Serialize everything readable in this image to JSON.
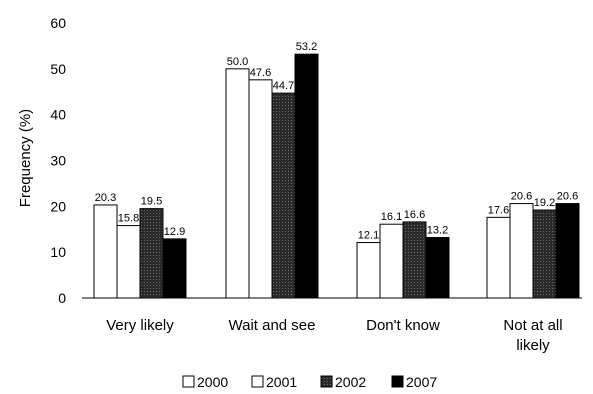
{
  "chart_data": {
    "type": "bar",
    "title": "",
    "xlabel": "",
    "ylabel": "Frequency (%)",
    "ylim": [
      0,
      60
    ],
    "yticks": [
      0,
      10,
      20,
      30,
      40,
      50,
      60
    ],
    "grid": false,
    "legend_position": "bottom",
    "categories": [
      "Very likely",
      "Wait and see",
      "Don't know",
      "Not at all likely"
    ],
    "category_lines": [
      [
        "Very likely"
      ],
      [
        "Wait and see"
      ],
      [
        "Don't know"
      ],
      [
        "Not at all",
        "likely"
      ]
    ],
    "series": [
      {
        "name": "2000",
        "values": [
          20.3,
          50.0,
          12.1,
          17.6
        ],
        "labels": [
          "20.3",
          "50.0",
          "12.1",
          "17.6"
        ],
        "color": "#ffffff"
      },
      {
        "name": "2001",
        "values": [
          15.8,
          47.6,
          16.1,
          20.6
        ],
        "labels": [
          "15.8",
          "47.6",
          "16.1",
          "20.6"
        ],
        "color": "#ffffff"
      },
      {
        "name": "2002",
        "values": [
          19.5,
          44.7,
          16.6,
          19.2
        ],
        "labels": [
          "19.5",
          "44.7",
          "16.6",
          "19.2"
        ],
        "color": "#2a2a2a"
      },
      {
        "name": "2007",
        "values": [
          12.9,
          53.2,
          13.2,
          20.6
        ],
        "labels": [
          "12.9",
          "53.2",
          "13.2",
          "20.6"
        ],
        "color": "#000000"
      }
    ]
  }
}
